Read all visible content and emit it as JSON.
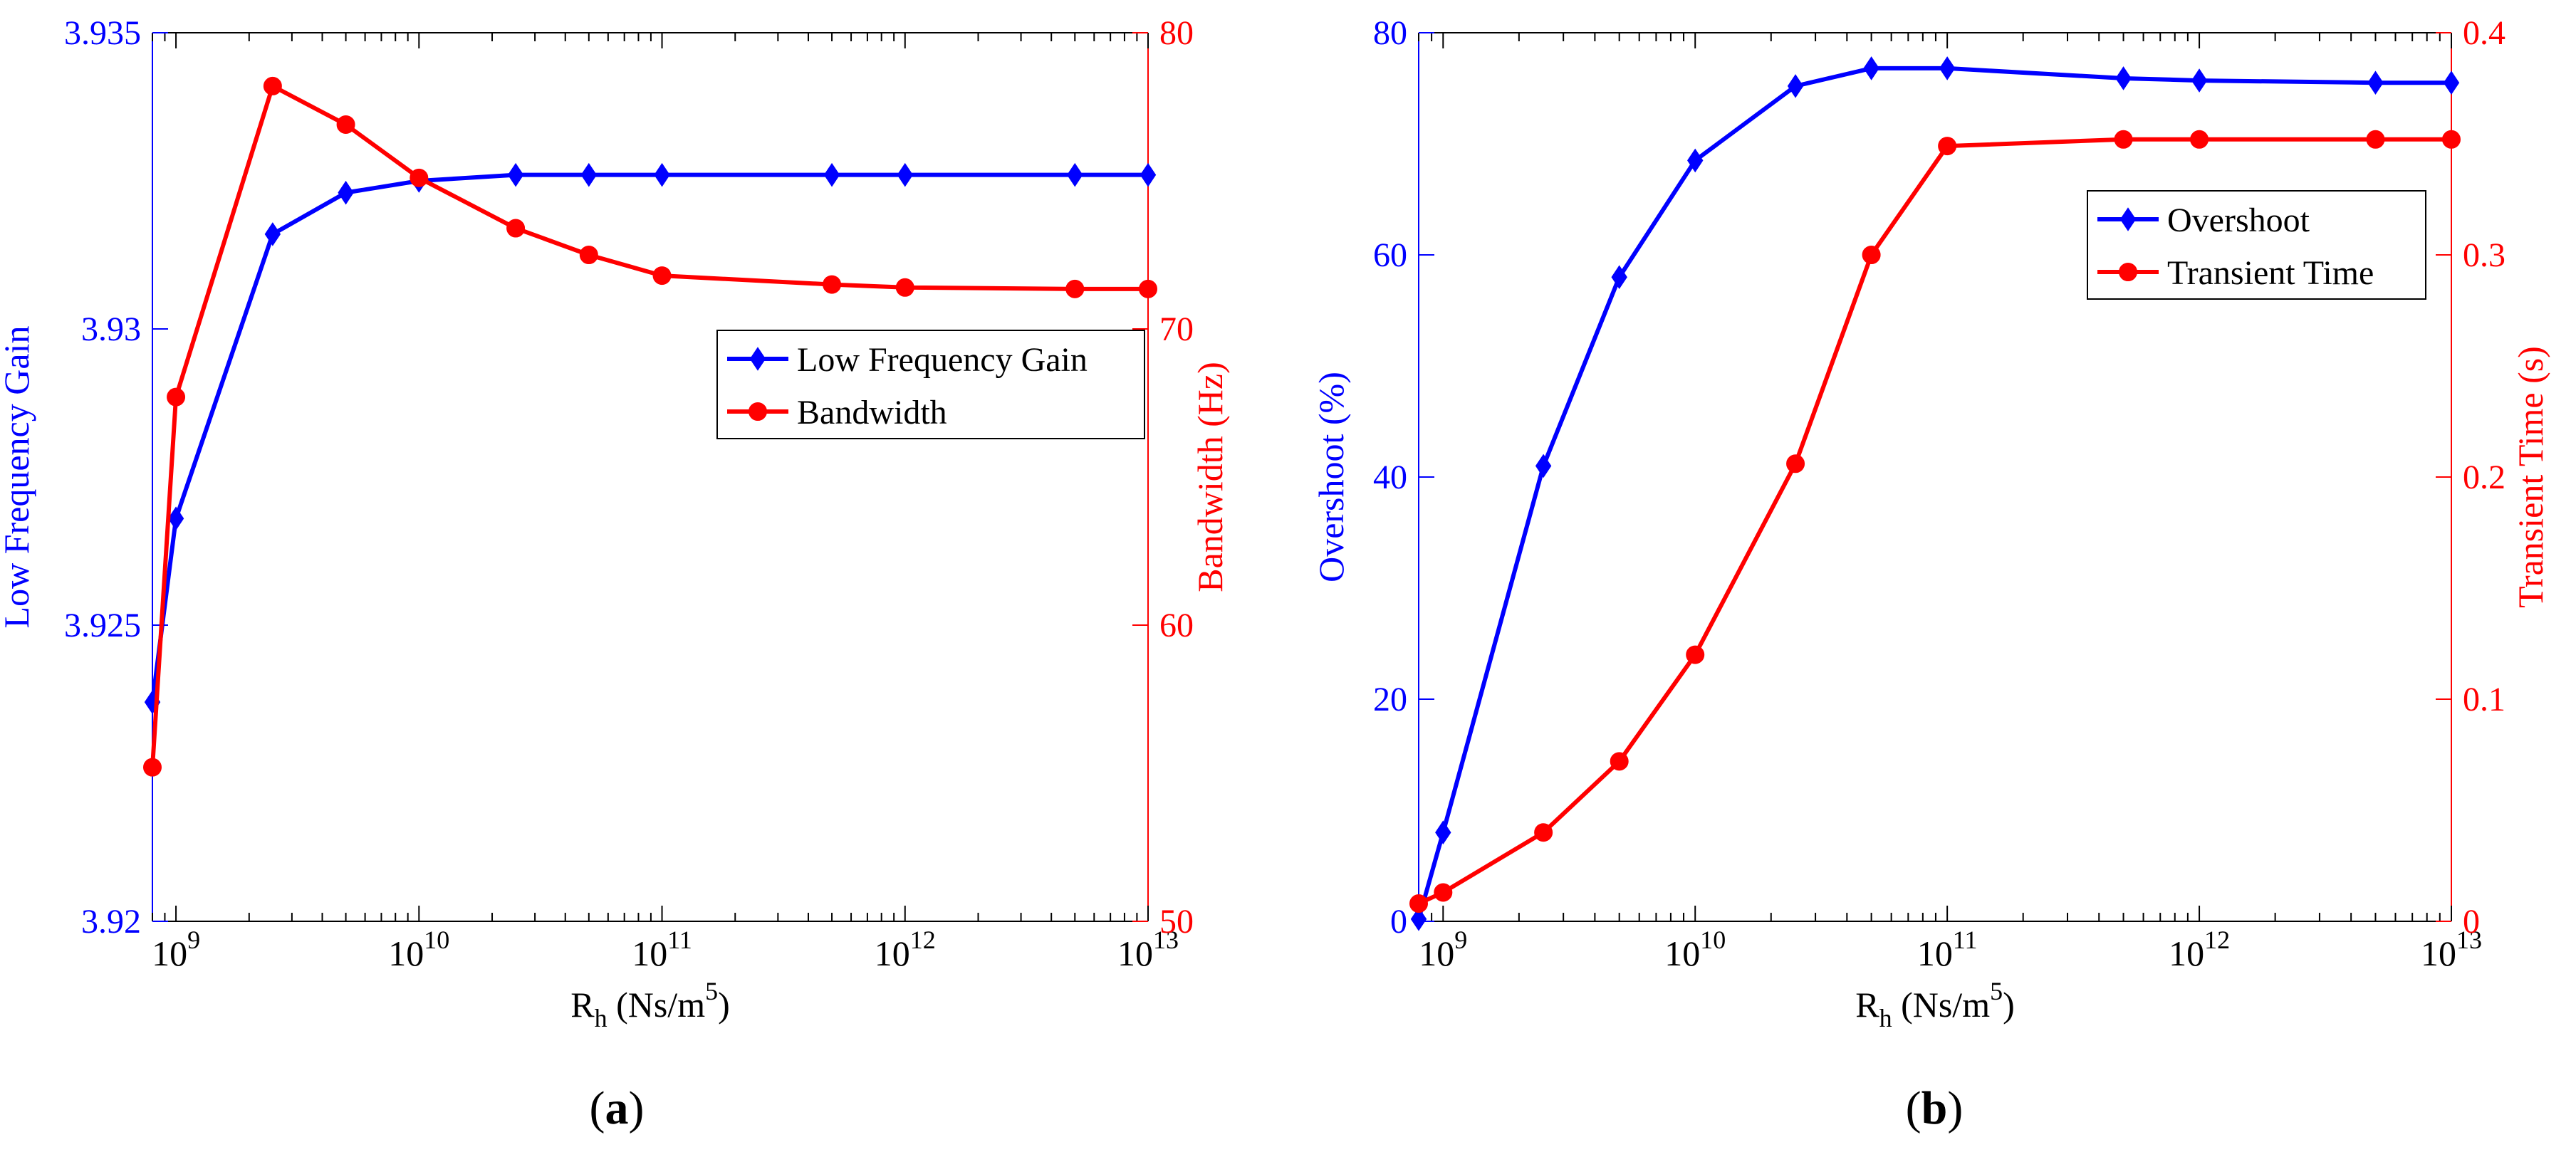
{
  "colors": {
    "blue": "#0000ff",
    "red": "#ff0000",
    "black": "#000000"
  },
  "chart_data": [
    {
      "type": "line",
      "panel_label": "(a)",
      "xlabel": {
        "main": "R",
        "sub": "h",
        "unit_pre": " (Ns/m",
        "unit_sup": "5",
        "unit_post": ")"
      },
      "x_scale": "log",
      "xlim": [
        800000000.0,
        10000000000000.0
      ],
      "xticks": [
        {
          "value": 1000000000.0,
          "base": "10",
          "exp": "9"
        },
        {
          "value": 10000000000.0,
          "base": "10",
          "exp": "10"
        },
        {
          "value": 100000000000.0,
          "base": "10",
          "exp": "11"
        },
        {
          "value": 1000000000000.0,
          "base": "10",
          "exp": "12"
        },
        {
          "value": 10000000000000.0,
          "base": "10",
          "exp": "13"
        }
      ],
      "y_left": {
        "label": "Low Frequency Gain",
        "ylim": [
          3.92,
          3.935
        ],
        "ticks": [
          "3.92",
          "3.925",
          "3.93",
          "3.935"
        ]
      },
      "y_right": {
        "label": "Bandwidth (Hz)",
        "ylim": [
          50,
          80
        ],
        "ticks": [
          "50",
          "60",
          "70",
          "80"
        ]
      },
      "legend": {
        "position": "right-middle"
      },
      "x": [
        800000000.0,
        1000000000.0,
        2500000000.0,
        5000000000.0,
        10000000000.0,
        25000000000.0,
        50000000000.0,
        100000000000.0,
        500000000000.0,
        1000000000000.0,
        5000000000000.0,
        10000000000000.0
      ],
      "series": [
        {
          "name": "Low Frequency Gain",
          "axis": "left",
          "marker": "diamond",
          "color": "#0000ff",
          "values": [
            3.9237,
            3.9268,
            3.9316,
            3.9323,
            3.9325,
            3.9326,
            3.9326,
            3.9326,
            3.9326,
            3.9326,
            3.9326,
            3.9326
          ]
        },
        {
          "name": "Bandwidth",
          "axis": "right",
          "marker": "circle",
          "color": "#ff0000",
          "values": [
            55.2,
            67.7,
            78.2,
            76.9,
            75.1,
            73.4,
            72.5,
            71.8,
            71.5,
            71.4,
            71.35,
            71.35
          ]
        }
      ]
    },
    {
      "type": "line",
      "panel_label": "(b)",
      "xlabel": {
        "main": "R",
        "sub": "h",
        "unit_pre": " (Ns/m",
        "unit_sup": "5",
        "unit_post": ")"
      },
      "x_scale": "log",
      "xlim": [
        800000000.0,
        10000000000000.0
      ],
      "xticks": [
        {
          "value": 1000000000.0,
          "base": "10",
          "exp": "9"
        },
        {
          "value": 10000000000.0,
          "base": "10",
          "exp": "10"
        },
        {
          "value": 100000000000.0,
          "base": "10",
          "exp": "11"
        },
        {
          "value": 1000000000000.0,
          "base": "10",
          "exp": "12"
        },
        {
          "value": 10000000000000.0,
          "base": "10",
          "exp": "13"
        }
      ],
      "y_left": {
        "label": "Overshoot (%)",
        "ylim": [
          0,
          80
        ],
        "ticks": [
          "0",
          "20",
          "40",
          "60",
          "80"
        ]
      },
      "y_right": {
        "label": "Transient Time (s)",
        "ylim": [
          0,
          0.4
        ],
        "ticks": [
          "0",
          "0.1",
          "0.2",
          "0.3",
          "0.4"
        ]
      },
      "legend": {
        "position": "top-right"
      },
      "x": [
        800000000.0,
        1000000000.0,
        2500000000.0,
        5000000000.0,
        10000000000.0,
        25000000000.0,
        50000000000.0,
        100000000000.0,
        500000000000.0,
        1000000000000.0,
        5000000000000.0,
        10000000000000.0
      ],
      "series": [
        {
          "name": "Overshoot",
          "axis": "left",
          "marker": "diamond",
          "color": "#0000ff",
          "values": [
            0.2,
            8,
            41,
            58,
            68.5,
            75.2,
            76.8,
            76.8,
            75.9,
            75.7,
            75.5,
            75.5
          ]
        },
        {
          "name": "Transient Time",
          "axis": "right",
          "marker": "circle",
          "color": "#ff0000",
          "values": [
            0.008,
            0.013,
            0.04,
            0.072,
            0.12,
            0.206,
            0.3,
            0.349,
            0.352,
            0.352,
            0.352,
            0.352
          ]
        }
      ]
    }
  ]
}
